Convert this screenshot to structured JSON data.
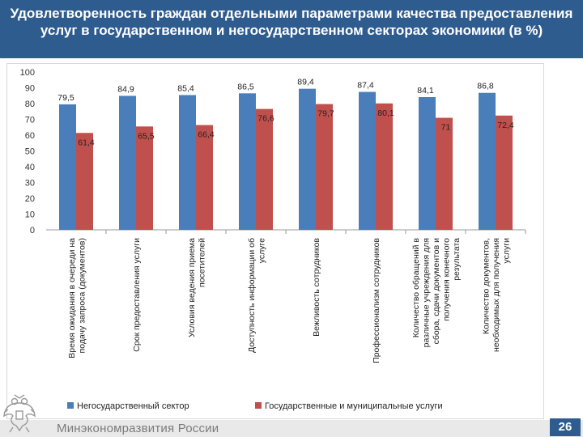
{
  "title": "Удовлетворенность граждан отдельными параметрами качества предоставления услуг в государственном и негосударственном секторах экономики (в %)",
  "footer": {
    "ministry": "Минэкономразвития России",
    "page_number": "26"
  },
  "colors": {
    "title_bg": "#2f5c8f",
    "series1": "#4a7ebb",
    "series2": "#c0504d"
  },
  "chart_data": {
    "type": "bar",
    "title": "Удовлетворенность граждан отдельными параметрами качества предоставления услуг в государственном и негосударственном секторах экономики (в %)",
    "categories": [
      "Время ожидания в очереди на подачу запроса (документов)",
      "Срок предоставления услуги",
      "Условия ведения приема посетителей",
      "Доступность информации об услуге",
      "Вежливость сотрудников",
      "Профессионализм сотрудников",
      "Количество обращений в различные учреждения для сбора, сдачи документов и получения конечного результата",
      "Количество документов, необходимых для получения услуги"
    ],
    "series": [
      {
        "name": "Негосударственный сектор",
        "values": [
          79.5,
          84.9,
          85.4,
          86.5,
          89.4,
          87.4,
          84.1,
          86.8
        ],
        "labels": [
          "79,5",
          "84,9",
          "85,4",
          "86,5",
          "89,4",
          "87,4",
          "84,1",
          "86,8"
        ]
      },
      {
        "name": "Государственные и муниципальные услуги",
        "values": [
          61.4,
          65.5,
          66.4,
          76.6,
          79.7,
          80.1,
          71.0,
          72.4
        ],
        "labels": [
          "61,4",
          "65,5",
          "66,4",
          "76,6",
          "79,7",
          "80,1",
          "71",
          "72,4"
        ]
      }
    ],
    "ylim": [
      0,
      100
    ],
    "yticks": [
      0,
      10,
      20,
      30,
      40,
      50,
      60,
      70,
      80,
      90,
      100
    ],
    "xlabel": "",
    "ylabel": "",
    "legend": "bottom",
    "grid": false
  }
}
